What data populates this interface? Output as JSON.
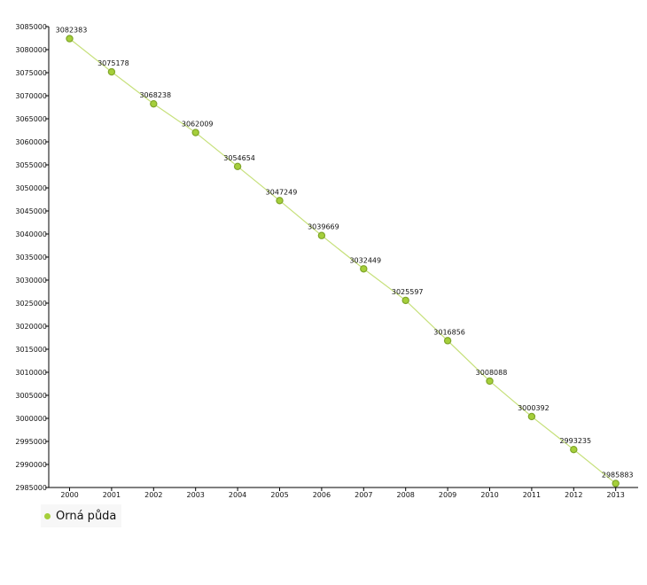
{
  "chart_data": {
    "type": "line",
    "title": "",
    "xlabel": "",
    "ylabel": "",
    "categories": [
      "2000",
      "2001",
      "2002",
      "2003",
      "2004",
      "2005",
      "2006",
      "2007",
      "2008",
      "2009",
      "2010",
      "2011",
      "2012",
      "2013"
    ],
    "series": [
      {
        "name": "Orná půda",
        "color": "#a5cf3a",
        "values": [
          3082383,
          3075178,
          3068238,
          3062009,
          3054654,
          3047249,
          3039669,
          3032449,
          3025597,
          3016856,
          3008088,
          3000392,
          2993235,
          2985883
        ],
        "labels": [
          "3082383",
          "3075178",
          "3068238",
          "3062009",
          "3054654",
          "3047249",
          "3039669",
          "3032449",
          "3025597",
          "3016856",
          "3008088",
          "3000392",
          "2993235",
          "2985883"
        ]
      }
    ],
    "ylim": [
      2985000,
      3085000
    ],
    "yticks": [
      "2985000",
      "2990000",
      "2995000",
      "3000000",
      "3005000",
      "3010000",
      "3015000",
      "3020000",
      "3025000",
      "3030000",
      "3035000",
      "3040000",
      "3045000",
      "3050000",
      "3055000",
      "3060000",
      "3065000",
      "3070000",
      "3075000",
      "3080000",
      "3085000"
    ],
    "grid": false,
    "legend_position": "bottom-left"
  },
  "legend": {
    "label": "Orná půda",
    "color": "#a5cf3a"
  }
}
